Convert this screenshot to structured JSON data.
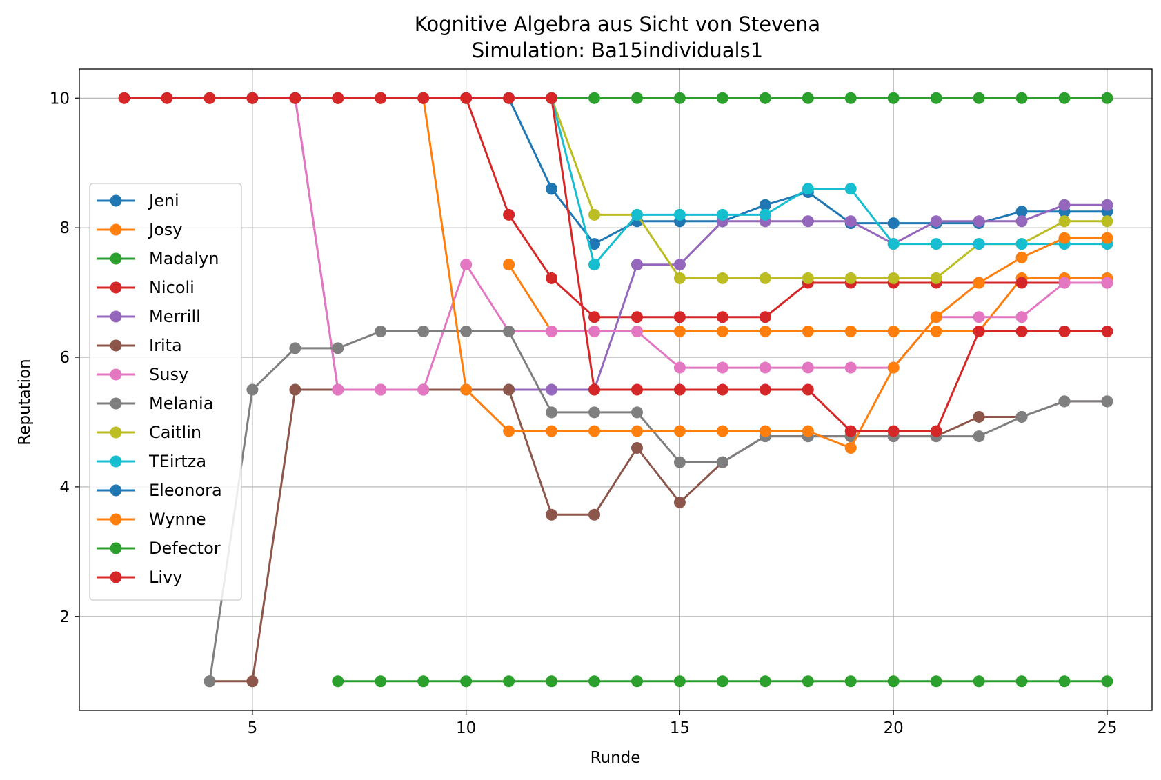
{
  "chart_data": {
    "type": "line",
    "title": "Kognitive Algebra aus Sicht von Stevena",
    "subtitle": "Simulation: Ba15individuals1",
    "xlabel": "Runde",
    "ylabel": "Reputation",
    "xlim": [
      0.95,
      26.05
    ],
    "ylim": [
      0.55,
      10.45
    ],
    "xticks": [
      5,
      10,
      15,
      20,
      25
    ],
    "yticks": [
      2,
      4,
      6,
      8,
      10
    ],
    "grid": true,
    "legend_position": "center-left",
    "series": [
      {
        "name": "Jeni",
        "color": "#1f77b4",
        "x": [
          12,
          13,
          14,
          15,
          16,
          17,
          18,
          19,
          20,
          21,
          22,
          23,
          24,
          25
        ],
        "y": [
          8.6,
          7.75,
          8.1,
          8.1,
          8.1,
          8.35,
          8.55,
          8.07,
          8.07,
          8.07,
          8.07,
          8.25,
          8.25,
          8.25
        ]
      },
      {
        "name": "Josy",
        "color": "#ff7f0e",
        "x": [
          11,
          12,
          13,
          14,
          15,
          16,
          17,
          18,
          19,
          20,
          21,
          22,
          23,
          24,
          25
        ],
        "y": [
          7.43,
          6.4,
          6.4,
          6.4,
          6.4,
          6.4,
          6.4,
          6.4,
          6.4,
          6.4,
          6.4,
          6.4,
          7.22,
          7.22,
          7.22
        ]
      },
      {
        "name": "Madalyn",
        "color": "#2ca02c",
        "x": [
          12,
          13,
          14,
          15,
          16,
          17,
          18,
          19,
          20,
          21,
          22,
          23,
          24,
          25
        ],
        "y": [
          10,
          10,
          10,
          10,
          10,
          10,
          10,
          10,
          10,
          10,
          10,
          10,
          10,
          10
        ]
      },
      {
        "name": "Nicoli",
        "color": "#d62728",
        "x": [
          10,
          11,
          12,
          13,
          14,
          15,
          16,
          17,
          18,
          19,
          20,
          21,
          22,
          23,
          24,
          25
        ],
        "y": [
          10,
          8.2,
          7.22,
          6.62,
          6.62,
          6.62,
          6.62,
          6.62,
          7.15,
          7.15,
          7.15,
          7.15,
          7.15,
          7.15,
          7.15,
          7.15
        ]
      },
      {
        "name": "Merrill",
        "color": "#9467bd",
        "x": [
          6,
          7,
          8,
          9,
          10,
          11,
          12,
          13,
          14,
          15,
          16,
          17,
          18,
          19,
          20,
          21,
          22,
          23,
          24,
          25
        ],
        "y": [
          10,
          5.5,
          5.5,
          5.5,
          5.5,
          5.5,
          5.5,
          5.5,
          7.43,
          7.43,
          8.1,
          8.1,
          8.1,
          8.1,
          7.75,
          8.1,
          8.1,
          8.1,
          8.35,
          8.35
        ]
      },
      {
        "name": "Irita",
        "color": "#8c564b",
        "x": [
          4,
          5,
          6,
          7,
          8,
          9,
          10,
          11,
          12,
          13,
          14,
          15,
          16,
          17,
          18,
          19,
          20,
          21,
          22,
          23,
          24,
          25
        ],
        "y": [
          1,
          1,
          5.5,
          5.5,
          5.5,
          5.5,
          5.5,
          5.5,
          3.57,
          3.57,
          4.6,
          3.76,
          4.38,
          4.78,
          4.78,
          4.78,
          4.78,
          4.78,
          5.08,
          5.08,
          5.32,
          5.32
        ]
      },
      {
        "name": "Susy",
        "color": "#e377c2",
        "x": [
          6,
          7,
          8,
          9,
          10,
          11,
          12,
          13,
          14,
          15,
          16,
          17,
          18,
          19,
          20,
          21,
          22,
          23,
          24,
          25
        ],
        "y": [
          10,
          5.5,
          5.5,
          5.5,
          7.43,
          6.4,
          6.4,
          6.4,
          6.4,
          5.84,
          5.84,
          5.84,
          5.84,
          5.84,
          5.84,
          6.62,
          6.62,
          6.62,
          7.15,
          7.15
        ]
      },
      {
        "name": "Melania",
        "color": "#7f7f7f",
        "x": [
          4,
          5,
          6,
          7,
          8,
          9,
          10,
          11,
          12,
          13,
          14,
          15,
          16,
          17,
          18,
          19,
          20,
          21,
          22,
          23,
          24,
          25
        ],
        "y": [
          1,
          5.5,
          6.14,
          6.14,
          6.4,
          6.4,
          6.4,
          6.4,
          5.15,
          5.15,
          5.15,
          4.38,
          4.38,
          4.78,
          4.78,
          4.78,
          4.78,
          4.78,
          4.78,
          5.08,
          5.32,
          5.32
        ]
      },
      {
        "name": "Caitlin",
        "color": "#bcbd22",
        "x": [
          4,
          5,
          6,
          7,
          8,
          9,
          10,
          11,
          12,
          13,
          14,
          15,
          16,
          17,
          18,
          19,
          20,
          21,
          22,
          23,
          24,
          25
        ],
        "y": [
          10,
          10,
          10,
          10,
          10,
          10,
          10,
          10,
          10,
          8.2,
          8.2,
          7.22,
          7.22,
          7.22,
          7.22,
          7.22,
          7.22,
          7.22,
          7.75,
          7.75,
          8.1,
          8.1
        ]
      },
      {
        "name": "TEirtza",
        "color": "#17becf",
        "x": [
          12,
          13,
          14,
          15,
          16,
          17,
          18,
          19,
          20,
          21,
          22,
          23,
          24,
          25
        ],
        "y": [
          10,
          7.43,
          8.2,
          8.2,
          8.2,
          8.2,
          8.6,
          8.6,
          7.75,
          7.75,
          7.75,
          7.75,
          7.75,
          7.75
        ]
      },
      {
        "name": "Eleonora",
        "color": "#1f77b4",
        "x": [
          5,
          6,
          7,
          8,
          9,
          10,
          11,
          12
        ],
        "y": [
          10,
          10,
          10,
          10,
          10,
          10,
          10,
          8.6
        ]
      },
      {
        "name": "Wynne",
        "color": "#ff7f0e",
        "x": [
          7,
          8,
          9,
          10,
          11,
          12,
          13,
          14,
          15,
          16,
          17,
          18,
          19,
          20,
          21,
          22,
          23,
          24,
          25
        ],
        "y": [
          10,
          10,
          10,
          5.5,
          4.86,
          4.86,
          4.86,
          4.86,
          4.86,
          4.86,
          4.86,
          4.86,
          4.6,
          5.84,
          6.62,
          7.15,
          7.54,
          7.84,
          7.84
        ]
      },
      {
        "name": "Defector",
        "color": "#2ca02c",
        "x": [
          7,
          8,
          9,
          10,
          11,
          12,
          13,
          14,
          15,
          16,
          17,
          18,
          19,
          20,
          21,
          22,
          23,
          24,
          25
        ],
        "y": [
          1,
          1,
          1,
          1,
          1,
          1,
          1,
          1,
          1,
          1,
          1,
          1,
          1,
          1,
          1,
          1,
          1,
          1,
          1
        ]
      },
      {
        "name": "Livy",
        "color": "#d62728",
        "x": [
          2,
          3,
          4,
          5,
          6,
          7,
          8,
          9,
          10,
          11,
          12,
          13,
          14,
          15,
          16,
          17,
          18,
          19,
          20,
          21,
          22,
          23,
          24,
          25
        ],
        "y": [
          10,
          10,
          10,
          10,
          10,
          10,
          10,
          10,
          10,
          10,
          10,
          5.5,
          5.5,
          5.5,
          5.5,
          5.5,
          5.5,
          4.86,
          4.86,
          4.86,
          6.4,
          6.4,
          6.4,
          6.4
        ]
      }
    ]
  }
}
